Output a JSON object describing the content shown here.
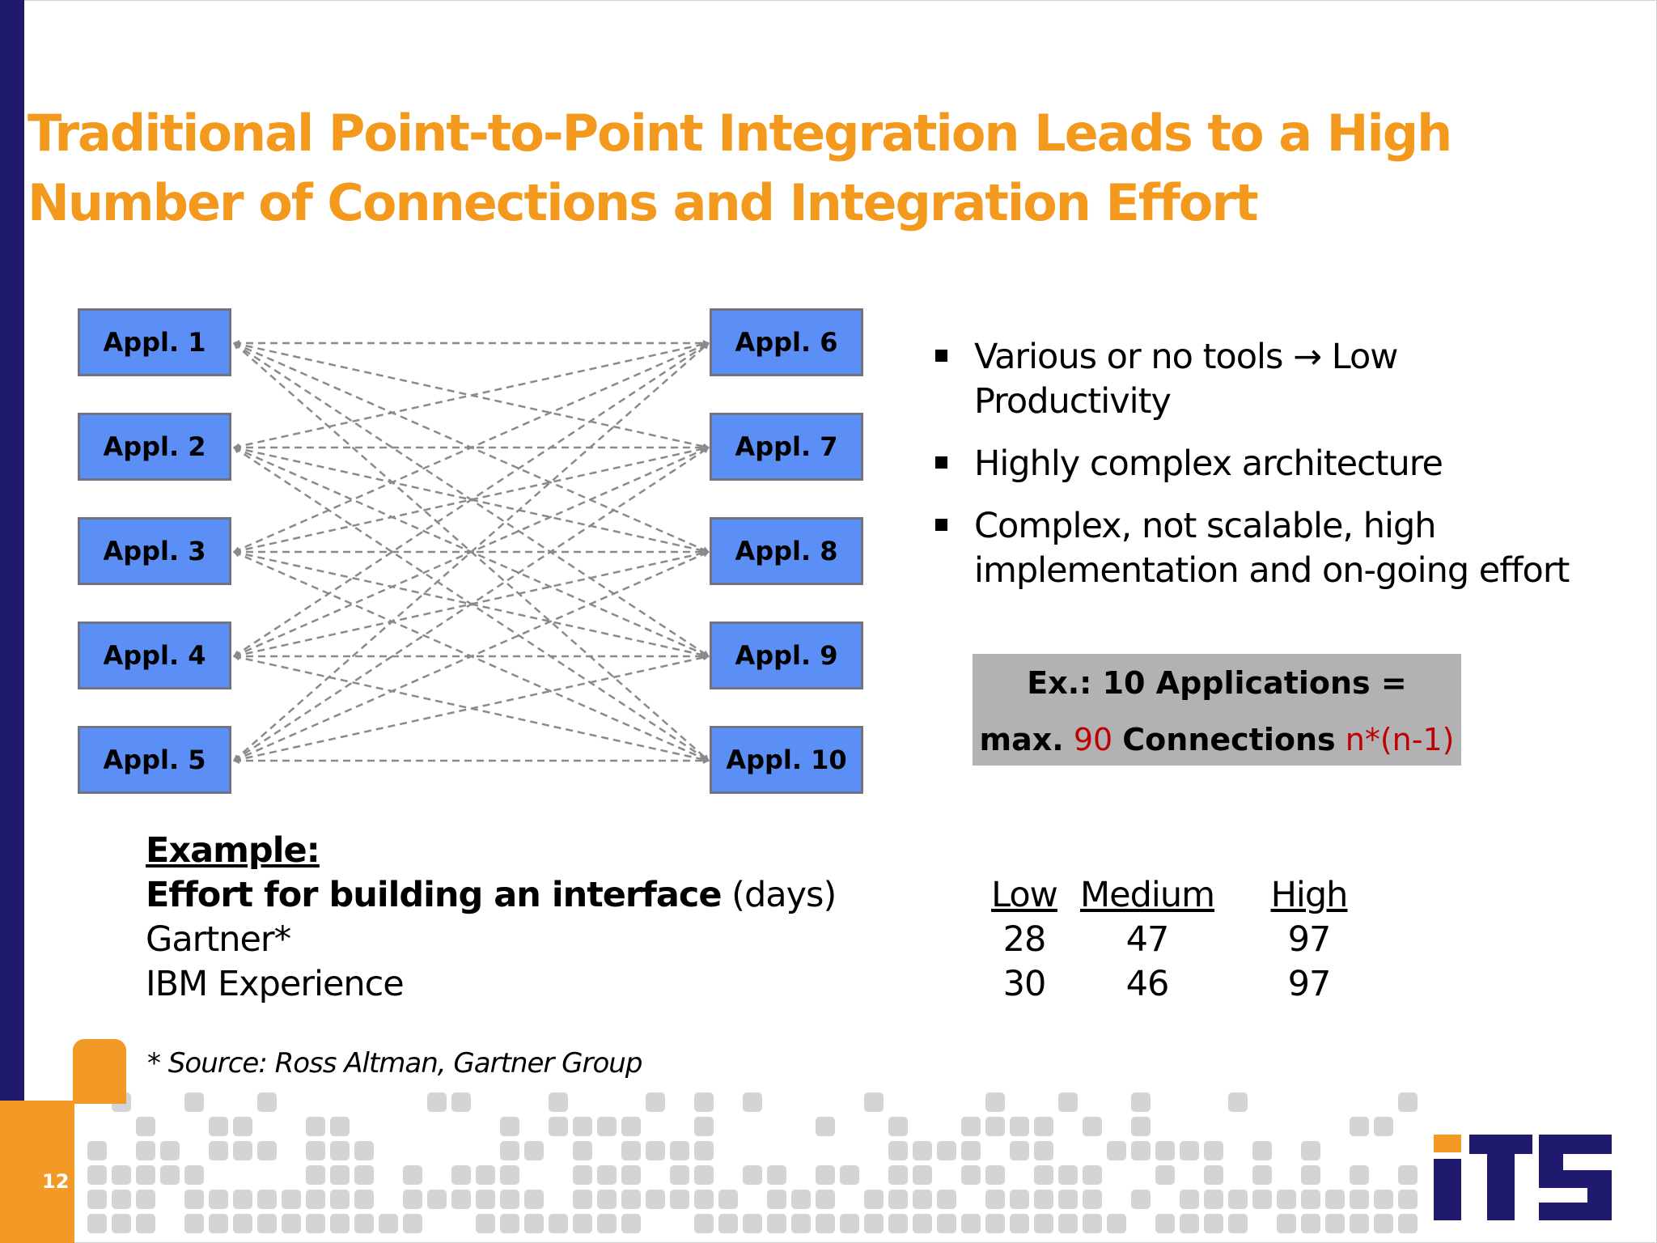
{
  "slide": {
    "title": "Traditional Point-to-Point Integration Leads to a High Number of Connections and Integration Effort",
    "page_number": "12"
  },
  "diagram": {
    "left_apps": [
      "Appl. 1",
      "Appl. 2",
      "Appl. 3",
      "Appl. 4",
      "Appl. 5"
    ],
    "right_apps": [
      "Appl. 6",
      "Appl. 7",
      "Appl. 8",
      "Appl. 9",
      "Appl. 10"
    ],
    "connections": "all-to-all",
    "box_color": "#5b8ff5",
    "line_color": "#8a8a8a"
  },
  "bullets": [
    "Various or no tools → Low Productivity",
    "Highly complex architecture",
    "Complex, not scalable, high implementation and on-going effort"
  ],
  "example_box": {
    "line1": "Ex.: 10 Applications =",
    "line2_prefix": "max.",
    "line2_number": "90",
    "line2_word": "Connections",
    "line2_formula": "n*(n-1)"
  },
  "example": {
    "heading": "Example:",
    "effort_label": "Effort for building an interface",
    "effort_unit": "(days)",
    "rows": [
      {
        "label": "Gartner*",
        "low": "28",
        "medium": "47",
        "high": "97"
      },
      {
        "label": "IBM Experience",
        "low": "30",
        "medium": "46",
        "high": "97"
      }
    ],
    "columns": [
      "Low",
      "Medium",
      "High"
    ]
  },
  "source_note": "* Source: Ross Altman, Gartner Group",
  "logo": {
    "text": "ITS",
    "color": "#1f1a6e"
  },
  "colors": {
    "title": "#f39a1e",
    "left_bar": "#1f1a6e",
    "accent_orange": "#f39a26",
    "example_box": "#b2b2b5",
    "highlight_red": "#c00000"
  }
}
